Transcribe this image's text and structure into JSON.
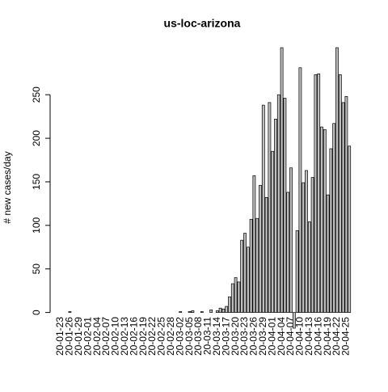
{
  "chart_data": {
    "type": "bar",
    "title": "us-loc-arizona",
    "y_label": "# new cases/day",
    "categories": [
      "20-01-23",
      null,
      null,
      "20-01-26",
      null,
      null,
      "20-01-29",
      null,
      null,
      "20-02-01",
      null,
      null,
      "20-02-04",
      null,
      null,
      "20-02-07",
      null,
      null,
      "20-02-10",
      null,
      null,
      "20-02-13",
      null,
      null,
      "20-02-16",
      null,
      null,
      "20-02-19",
      null,
      null,
      "20-02-22",
      null,
      null,
      "20-02-25",
      null,
      null,
      "20-02-28",
      null,
      null,
      "20-03-02",
      null,
      null,
      "20-03-05",
      null,
      null,
      "20-03-08",
      null,
      null,
      "20-03-11",
      null,
      null,
      "20-03-14",
      null,
      null,
      "20-03-17",
      null,
      null,
      "20-03-20",
      null,
      null,
      "20-03-23",
      null,
      null,
      "20-03-26",
      null,
      null,
      "20-03-29",
      null,
      null,
      "20-04-01",
      null,
      null,
      "20-04-04",
      null,
      null,
      "20-04-07",
      null,
      null,
      "20-04-10",
      null,
      null,
      "20-04-13",
      null,
      null,
      "20-04-16",
      null,
      null,
      "20-04-19",
      null,
      null,
      "20-04-22",
      null,
      null,
      "20-04-25",
      null
    ],
    "values": [
      0,
      0,
      0,
      1,
      0,
      0,
      0,
      0,
      0,
      0,
      0,
      0,
      0,
      0,
      0,
      0,
      0,
      0,
      0,
      0,
      0,
      0,
      0,
      0,
      0,
      0,
      0,
      0,
      0,
      0,
      0,
      0,
      0,
      0,
      0,
      0,
      0,
      0,
      0,
      1,
      0,
      0,
      1,
      2,
      0,
      0,
      1,
      0,
      0,
      3,
      0,
      2,
      5,
      4,
      7,
      18,
      33,
      40,
      35,
      83,
      91,
      75,
      107,
      157,
      108,
      146,
      238,
      132,
      241,
      185,
      222,
      250,
      304,
      246,
      138,
      166,
      -18,
      94,
      281,
      149,
      163,
      104,
      155,
      273,
      274,
      213,
      210,
      135,
      188,
      217,
      304,
      273,
      241,
      248,
      191
    ],
    "color": "#bebebe",
    "ylim": [
      -18,
      304
    ],
    "yticks": [
      0,
      50,
      100,
      150,
      200,
      250
    ]
  }
}
